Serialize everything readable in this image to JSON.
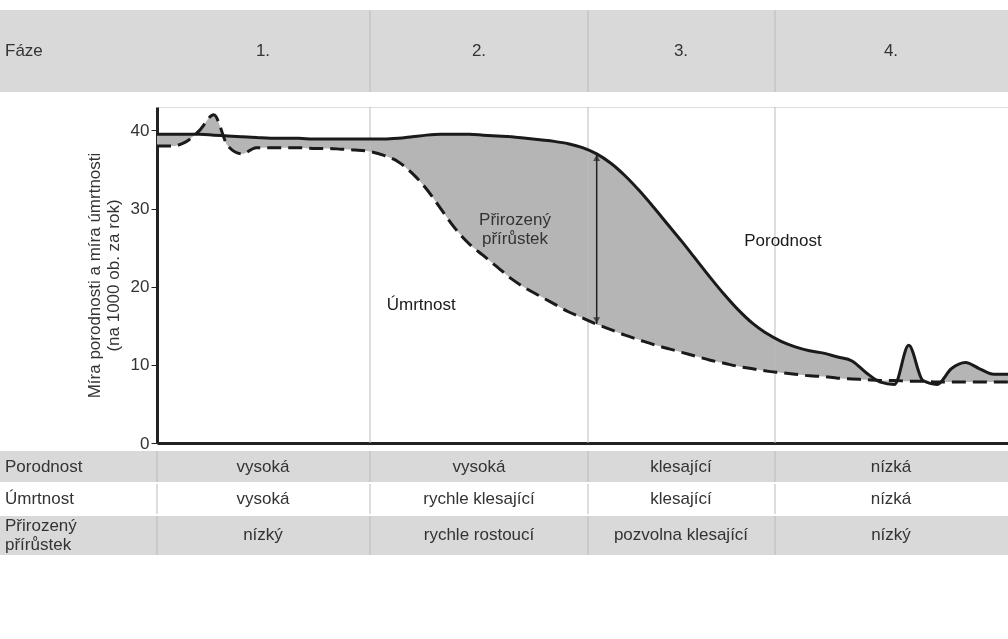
{
  "chart_data": {
    "type": "line",
    "ylabel": "Míra porodnosti a míra úmrtnosti\n(na 1000 ob. za rok)",
    "categories": [
      null,
      null,
      null,
      null,
      null,
      null,
      null,
      null,
      null,
      null,
      null,
      null,
      null,
      null,
      null,
      null,
      null,
      null,
      null,
      null,
      null,
      null,
      null,
      null,
      null,
      null,
      null,
      null,
      null,
      null,
      null,
      null,
      null,
      null,
      null,
      null,
      null,
      null,
      null,
      null,
      null,
      null,
      null,
      null,
      null,
      null,
      null,
      null,
      null,
      null,
      null,
      null,
      null,
      null,
      null,
      null,
      null,
      null,
      null,
      null,
      null
    ],
    "series": [
      {
        "name": "Porodnost",
        "color": "#1a1a1a",
        "line_style": "solid",
        "values": [
          39.5,
          39.5,
          39.5,
          39.5,
          39.4,
          39.3,
          39.2,
          39.1,
          39,
          39,
          39,
          38.9,
          38.9,
          38.9,
          38.9,
          38.9,
          38.9,
          39,
          39.2,
          39.4,
          39.5,
          39.5,
          39.5,
          39.4,
          39.3,
          39.2,
          39,
          38.8,
          38.6,
          38.3,
          37.8,
          37,
          35.8,
          34.2,
          32.3,
          30.2,
          28,
          25.8,
          23.5,
          21.2,
          19,
          17,
          15.3,
          14,
          13,
          12.3,
          11.8,
          11.5,
          11,
          10.5,
          9,
          7.8,
          7.5,
          12.5,
          8,
          7.5,
          9.5,
          10.3,
          9.5,
          8.8,
          8.8
        ],
        "lower": [
          38,
          38,
          38.5,
          40,
          42,
          38,
          37,
          37.8,
          37.8,
          37.8,
          37.8,
          37.7,
          37.7,
          37.6,
          37.5,
          37.3,
          36.8,
          36,
          34.5,
          32.5,
          30,
          27.5,
          25.5,
          24,
          22.5,
          21,
          19.8,
          18.8,
          17.8,
          16.8,
          16,
          15.2,
          14.5,
          13.8,
          13.2,
          12.6,
          12.1,
          11.6,
          11.1,
          10.6,
          10.2,
          9.8,
          9.5,
          9.2,
          9,
          8.8,
          8.6,
          8.5,
          8.3,
          8.2,
          8.1,
          8,
          8,
          7.9,
          7.9,
          7.8,
          7.8,
          7.8,
          7.8,
          7.8,
          7.8
        ],
        "upper": [
          39.5,
          39.5,
          39.5,
          39.5,
          39.4,
          39.3,
          39.2,
          39.1,
          39,
          39,
          39,
          38.9,
          38.9,
          38.9,
          38.9,
          38.9,
          38.9,
          39,
          39.2,
          39.4,
          39.5,
          39.5,
          39.5,
          39.4,
          39.3,
          39.2,
          39,
          38.8,
          38.6,
          38.3,
          37.8,
          37,
          35.8,
          34.2,
          32.3,
          30.2,
          28,
          25.8,
          23.5,
          21.2,
          19,
          17,
          15.3,
          14,
          13,
          12.3,
          11.8,
          11.5,
          11,
          10.5,
          9,
          7.8,
          7.5,
          12.5,
          8,
          7.5,
          9.5,
          10.3,
          9.5,
          8.8,
          8.8
        ]
      },
      {
        "name": "Úmrtnost",
        "color": "#1a1a1a",
        "line_style": "dashed",
        "values": [
          38,
          38,
          38.5,
          40,
          42,
          38,
          37,
          37.8,
          37.8,
          37.8,
          37.8,
          37.7,
          37.7,
          37.6,
          37.5,
          37.3,
          36.8,
          36,
          34.5,
          32.5,
          30,
          27.5,
          25.5,
          24,
          22.5,
          21,
          19.8,
          18.8,
          17.8,
          16.8,
          16,
          15.2,
          14.5,
          13.8,
          13.2,
          12.6,
          12.1,
          11.6,
          11.1,
          10.6,
          10.2,
          9.8,
          9.5,
          9.2,
          9,
          8.8,
          8.6,
          8.5,
          8.3,
          8.2,
          8.1,
          8,
          8,
          7.9,
          7.9,
          7.8,
          7.8,
          7.8,
          7.8,
          7.8,
          7.8
        ]
      }
    ],
    "ylim": [
      0,
      43
    ],
    "yticks": [
      0,
      10,
      20,
      30,
      40
    ],
    "grid": false,
    "legend": false,
    "tick_labels": "y",
    "marker": "none",
    "annotations": [
      "Fáze",
      "1.",
      "2.",
      "3.",
      "4.",
      "Porodnost",
      "vysoká",
      "vysoká",
      "klesající",
      "nízká",
      "Úmrtnost",
      "vysoká",
      "rychle klesající",
      "klesající",
      "nízká",
      "Přirozený\npřírůstek",
      "nízký",
      "rychle rostoucí",
      "pozvolna klesající",
      "nízký",
      "Přirozený\npřírůstek"
    ]
  }
}
